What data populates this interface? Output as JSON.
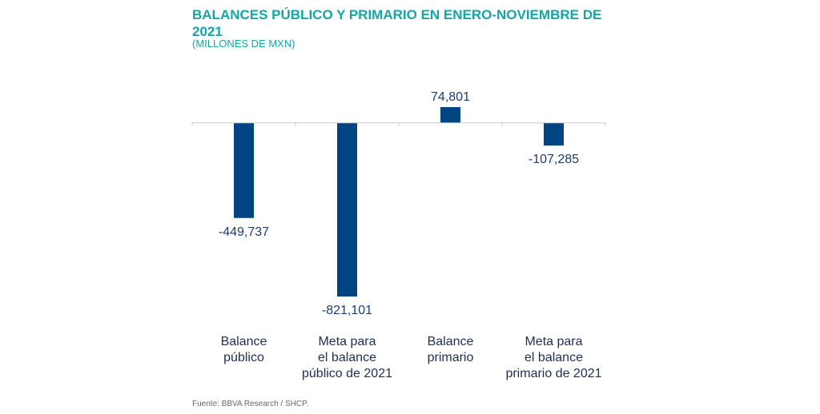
{
  "chart_data": {
    "type": "bar",
    "title": "BALANCES PÚBLICO Y PRIMARIO EN ENERO-NOVIEMBRE DE 2021",
    "subtitle": "(MILLONES DE MXN)",
    "categories": [
      [
        "Balance",
        "público"
      ],
      [
        "Meta para",
        "el balance",
        "público de 2021"
      ],
      [
        "Balance",
        "primario"
      ],
      [
        "Meta para",
        "el balance",
        "primario de 2021"
      ]
    ],
    "values": [
      -449737,
      -821101,
      74801,
      -107285
    ],
    "value_labels": [
      "-449,737",
      "-821,101",
      "74,801",
      "-107,285"
    ],
    "ylim": [
      -821101,
      74801
    ],
    "grid": false,
    "bar_color": "#004481",
    "source": "Fuente: BBVA Research / SHCP."
  }
}
